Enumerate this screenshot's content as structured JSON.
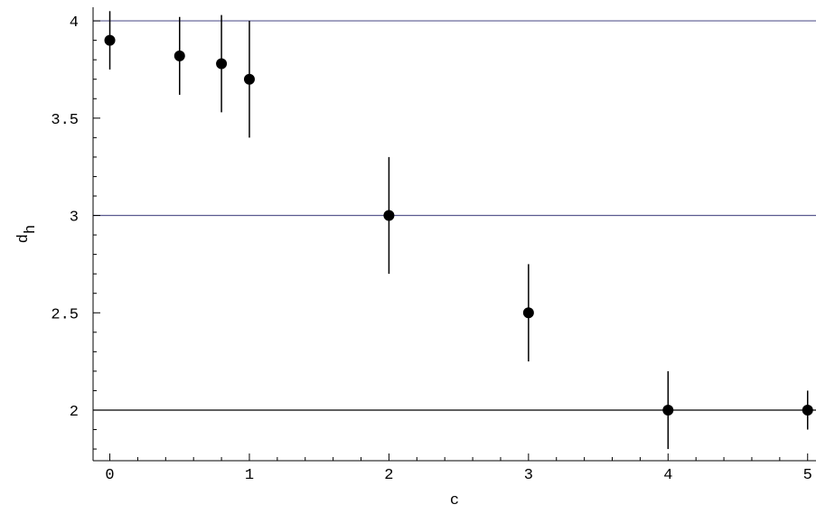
{
  "chart_data": {
    "type": "scatter",
    "xlabel": "c",
    "ylabel": "d",
    "ylabel_subscript": "h",
    "xlim": [
      -0.12,
      5.06
    ],
    "ylim": [
      1.74,
      4.07
    ],
    "x_ticks_major": [
      0,
      1,
      2,
      3,
      4,
      5
    ],
    "x_tick_labels": [
      "0",
      "1",
      "2",
      "3",
      "4",
      "5"
    ],
    "y_ticks_major": [
      2,
      2.5,
      3,
      3.5,
      4
    ],
    "y_tick_labels": [
      "2",
      "2.5",
      "3",
      "3.5",
      "4"
    ],
    "grid": false,
    "reference_lines": [
      {
        "y": 4,
        "color": "#5a5a90"
      },
      {
        "y": 3,
        "color": "#5a5a90"
      },
      {
        "y": 2,
        "color": "#000000"
      }
    ],
    "series": [
      {
        "points": [
          {
            "x": 0.0,
            "y": 3.9,
            "err_low": 3.75,
            "err_high": 4.05
          },
          {
            "x": 0.5,
            "y": 3.82,
            "err_low": 3.62,
            "err_high": 4.02
          },
          {
            "x": 0.8,
            "y": 3.78,
            "err_low": 3.53,
            "err_high": 4.03
          },
          {
            "x": 1.0,
            "y": 3.7,
            "err_low": 3.4,
            "err_high": 4.0
          },
          {
            "x": 2.0,
            "y": 3.0,
            "err_low": 2.7,
            "err_high": 3.3
          },
          {
            "x": 3.0,
            "y": 2.5,
            "err_low": 2.25,
            "err_high": 2.75
          },
          {
            "x": 4.0,
            "y": 2.0,
            "err_low": 1.8,
            "err_high": 2.2
          },
          {
            "x": 5.0,
            "y": 2.0,
            "err_low": 1.9,
            "err_high": 2.1
          }
        ]
      }
    ]
  }
}
